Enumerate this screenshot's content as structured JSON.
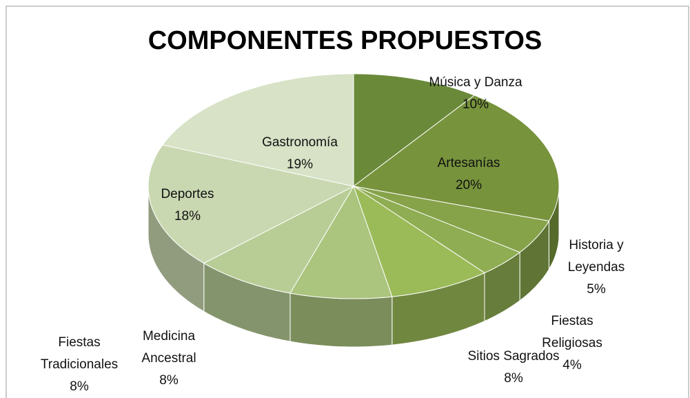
{
  "chart_data": {
    "type": "pie",
    "title": "COMPONENTES PROPUESTOS",
    "categories": [
      "Música y Danza",
      "Artesanías",
      "Historia y Leyendas",
      "Fiestas Religiosas",
      "Sitios Sagrados",
      "Medicina Ancestral",
      "Fiestas Tradicionales",
      "Deportes",
      "Gastronomía"
    ],
    "values": [
      10,
      20,
      5,
      4,
      8,
      8,
      8,
      18,
      19
    ],
    "value_labels": [
      "10%",
      "20%",
      "5%",
      "4%",
      "8%",
      "8%",
      "8%",
      "18%",
      "19%"
    ],
    "colors": [
      "#6a8a3a",
      "#77933c",
      "#86a34a",
      "#8fad52",
      "#9bbb59",
      "#abc47e",
      "#b8cd96",
      "#c9d8b1",
      "#d7e2c6"
    ]
  }
}
